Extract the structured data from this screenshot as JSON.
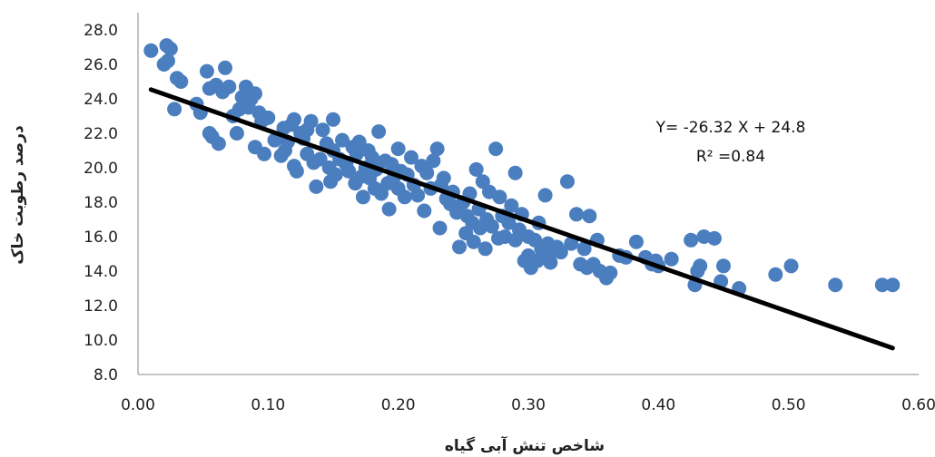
{
  "chart_data": {
    "type": "scatter",
    "xlabel": "شاخص تنش آبی گیاه",
    "ylabel": "درصد رطوبت خاک",
    "xlim": [
      0,
      0.6
    ],
    "ylim": [
      8,
      28
    ],
    "xticks": [
      "0.00",
      "0.10",
      "0.20",
      "0.30",
      "0.40",
      "0.50",
      "0.60"
    ],
    "yticks": [
      "8.0",
      "10.0",
      "12.0",
      "14.0",
      "16.0",
      "18.0",
      "20.0",
      "22.0",
      "24.0",
      "26.0",
      "28.0"
    ],
    "grid": false,
    "point_color": "#4a7ebf",
    "trendline": {
      "slope": -26.32,
      "intercept": 24.8,
      "x_start": 0.01,
      "x_end": 0.58,
      "color": "#000000"
    },
    "annotations": {
      "equation": "Y= -26.32 X + 24.8",
      "r2": "R² =0.84"
    },
    "points": [
      [
        0.01,
        26.8
      ],
      [
        0.02,
        26.0
      ],
      [
        0.022,
        27.1
      ],
      [
        0.025,
        26.9
      ],
      [
        0.023,
        26.2
      ],
      [
        0.03,
        25.2
      ],
      [
        0.028,
        23.4
      ],
      [
        0.033,
        25.0
      ],
      [
        0.045,
        23.7
      ],
      [
        0.048,
        23.2
      ],
      [
        0.053,
        25.6
      ],
      [
        0.055,
        24.6
      ],
      [
        0.055,
        22.0
      ],
      [
        0.057,
        21.8
      ],
      [
        0.06,
        24.8
      ],
      [
        0.062,
        21.4
      ],
      [
        0.065,
        24.4
      ],
      [
        0.067,
        25.8
      ],
      [
        0.07,
        24.7
      ],
      [
        0.073,
        23.0
      ],
      [
        0.076,
        22.0
      ],
      [
        0.078,
        23.4
      ],
      [
        0.08,
        24.1
      ],
      [
        0.083,
        24.7
      ],
      [
        0.085,
        23.5
      ],
      [
        0.087,
        24.0
      ],
      [
        0.09,
        24.3
      ],
      [
        0.09,
        21.2
      ],
      [
        0.093,
        23.2
      ],
      [
        0.095,
        22.7
      ],
      [
        0.097,
        20.8
      ],
      [
        0.1,
        22.9
      ],
      [
        0.105,
        21.6
      ],
      [
        0.11,
        20.7
      ],
      [
        0.112,
        22.3
      ],
      [
        0.113,
        21.0
      ],
      [
        0.115,
        21.5
      ],
      [
        0.118,
        22.5
      ],
      [
        0.12,
        20.1
      ],
      [
        0.12,
        22.8
      ],
      [
        0.122,
        19.8
      ],
      [
        0.125,
        22.0
      ],
      [
        0.127,
        21.7
      ],
      [
        0.13,
        22.2
      ],
      [
        0.13,
        20.8
      ],
      [
        0.133,
        22.7
      ],
      [
        0.135,
        20.3
      ],
      [
        0.137,
        18.9
      ],
      [
        0.14,
        20.5
      ],
      [
        0.142,
        22.2
      ],
      [
        0.145,
        21.4
      ],
      [
        0.147,
        20.0
      ],
      [
        0.148,
        19.2
      ],
      [
        0.15,
        21.0
      ],
      [
        0.15,
        22.8
      ],
      [
        0.152,
        19.6
      ],
      [
        0.155,
        20.5
      ],
      [
        0.157,
        21.6
      ],
      [
        0.16,
        20.2
      ],
      [
        0.162,
        19.8
      ],
      [
        0.165,
        21.2
      ],
      [
        0.167,
        19.1
      ],
      [
        0.168,
        20.8
      ],
      [
        0.17,
        21.5
      ],
      [
        0.172,
        19.5
      ],
      [
        0.173,
        18.3
      ],
      [
        0.175,
        20.0
      ],
      [
        0.177,
        21.0
      ],
      [
        0.178,
        19.4
      ],
      [
        0.18,
        20.6
      ],
      [
        0.182,
        18.8
      ],
      [
        0.183,
        19.9
      ],
      [
        0.185,
        22.1
      ],
      [
        0.187,
        18.5
      ],
      [
        0.19,
        20.4
      ],
      [
        0.192,
        19.1
      ],
      [
        0.193,
        17.6
      ],
      [
        0.195,
        20.2
      ],
      [
        0.197,
        19.5
      ],
      [
        0.2,
        21.1
      ],
      [
        0.2,
        18.8
      ],
      [
        0.202,
        19.8
      ],
      [
        0.205,
        18.3
      ],
      [
        0.207,
        19.6
      ],
      [
        0.21,
        20.6
      ],
      [
        0.212,
        19.0
      ],
      [
        0.215,
        18.4
      ],
      [
        0.218,
        20.1
      ],
      [
        0.22,
        17.5
      ],
      [
        0.222,
        19.7
      ],
      [
        0.225,
        18.8
      ],
      [
        0.227,
        20.4
      ],
      [
        0.23,
        21.1
      ],
      [
        0.232,
        16.5
      ],
      [
        0.233,
        19.0
      ],
      [
        0.235,
        19.4
      ],
      [
        0.237,
        18.2
      ],
      [
        0.24,
        17.9
      ],
      [
        0.242,
        18.6
      ],
      [
        0.245,
        17.4
      ],
      [
        0.247,
        15.4
      ],
      [
        0.25,
        18.0
      ],
      [
        0.252,
        16.2
      ],
      [
        0.253,
        17.2
      ],
      [
        0.255,
        18.5
      ],
      [
        0.257,
        16.8
      ],
      [
        0.258,
        15.7
      ],
      [
        0.26,
        19.9
      ],
      [
        0.262,
        17.6
      ],
      [
        0.263,
        16.5
      ],
      [
        0.265,
        19.2
      ],
      [
        0.267,
        15.3
      ],
      [
        0.268,
        17.0
      ],
      [
        0.27,
        18.6
      ],
      [
        0.272,
        16.6
      ],
      [
        0.275,
        21.1
      ],
      [
        0.277,
        15.9
      ],
      [
        0.278,
        18.3
      ],
      [
        0.28,
        17.2
      ],
      [
        0.282,
        16.0
      ],
      [
        0.285,
        16.8
      ],
      [
        0.287,
        17.8
      ],
      [
        0.29,
        19.7
      ],
      [
        0.29,
        15.8
      ],
      [
        0.293,
        16.4
      ],
      [
        0.295,
        17.3
      ],
      [
        0.297,
        14.6
      ],
      [
        0.3,
        16.0
      ],
      [
        0.3,
        14.9
      ],
      [
        0.302,
        14.2
      ],
      [
        0.305,
        15.8
      ],
      [
        0.307,
        14.6
      ],
      [
        0.308,
        16.8
      ],
      [
        0.31,
        15.3
      ],
      [
        0.312,
        15.0
      ],
      [
        0.313,
        18.4
      ],
      [
        0.315,
        15.6
      ],
      [
        0.317,
        14.5
      ],
      [
        0.32,
        15.2
      ],
      [
        0.322,
        15.4
      ],
      [
        0.325,
        15.1
      ],
      [
        0.33,
        19.2
      ],
      [
        0.333,
        15.6
      ],
      [
        0.337,
        17.3
      ],
      [
        0.34,
        14.4
      ],
      [
        0.343,
        15.3
      ],
      [
        0.345,
        14.2
      ],
      [
        0.347,
        17.2
      ],
      [
        0.35,
        14.4
      ],
      [
        0.353,
        15.8
      ],
      [
        0.355,
        14.0
      ],
      [
        0.36,
        13.6
      ],
      [
        0.363,
        13.9
      ],
      [
        0.37,
        14.9
      ],
      [
        0.375,
        14.8
      ],
      [
        0.383,
        15.7
      ],
      [
        0.39,
        14.8
      ],
      [
        0.395,
        14.4
      ],
      [
        0.398,
        14.6
      ],
      [
        0.4,
        14.3
      ],
      [
        0.41,
        14.7
      ],
      [
        0.425,
        15.8
      ],
      [
        0.428,
        13.2
      ],
      [
        0.43,
        14.0
      ],
      [
        0.432,
        14.3
      ],
      [
        0.435,
        16.0
      ],
      [
        0.443,
        15.9
      ],
      [
        0.448,
        13.4
      ],
      [
        0.45,
        14.3
      ],
      [
        0.462,
        13.0
      ],
      [
        0.49,
        13.8
      ],
      [
        0.502,
        14.3
      ],
      [
        0.536,
        13.2
      ],
      [
        0.572,
        13.2
      ],
      [
        0.58,
        13.2
      ]
    ]
  }
}
